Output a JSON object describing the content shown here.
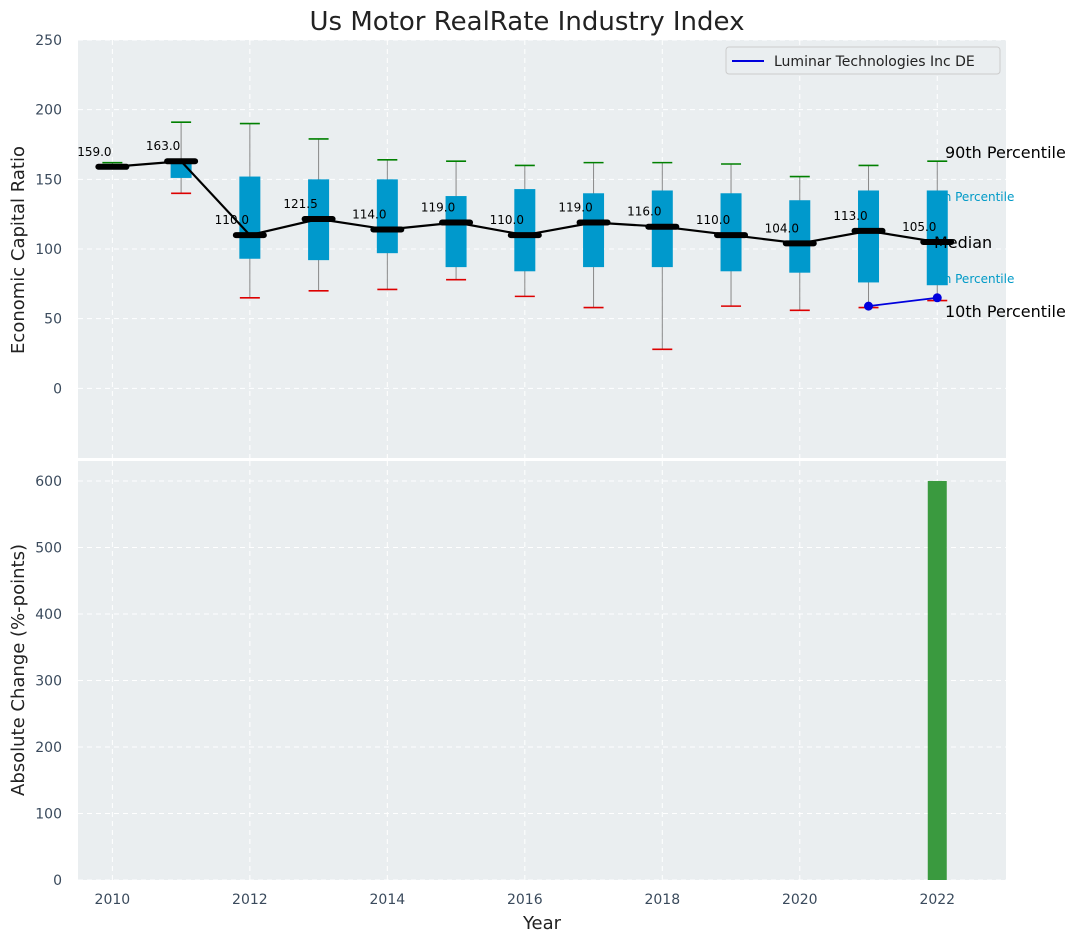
{
  "chart_data": [
    {
      "type": "box",
      "title": "Us Motor RealRate Industry Index",
      "ylabel": "Economic Capital Ratio",
      "xlim": [
        2009.5,
        2023
      ],
      "ylim": [
        -50,
        250
      ],
      "yticks": [
        0,
        50,
        100,
        150,
        200,
        250
      ],
      "grid": true,
      "legend_position": "top-right",
      "colors": {
        "box": "#0099cc",
        "median_line": "#000000",
        "whisker_high": "#008000",
        "whisker_low": "#dd0000",
        "company": "#0000dd",
        "label_small": "#009ac7",
        "background": "#eaeef0"
      },
      "boxes": [
        {
          "year": 2010,
          "p10": 159,
          "q1": 159,
          "median": 159,
          "q3": 159,
          "p90": 162,
          "median_label": "159.0"
        },
        {
          "year": 2011,
          "p10": 140,
          "q1": 151,
          "median": 163,
          "q3": 163,
          "p90": 191,
          "median_label": "163.0"
        },
        {
          "year": 2012,
          "p10": 65,
          "q1": 93,
          "median": 110,
          "q3": 152,
          "p90": 190,
          "median_label": "110.0"
        },
        {
          "year": 2013,
          "p10": 70,
          "q1": 92,
          "median": 121.5,
          "q3": 150,
          "p90": 179,
          "median_label": "121.5"
        },
        {
          "year": 2014,
          "p10": 71,
          "q1": 97,
          "median": 114,
          "q3": 150,
          "p90": 164,
          "median_label": "114.0"
        },
        {
          "year": 2015,
          "p10": 78,
          "q1": 87,
          "median": 119,
          "q3": 138,
          "p90": 163,
          "median_label": "119.0"
        },
        {
          "year": 2016,
          "p10": 66,
          "q1": 84,
          "median": 110,
          "q3": 143,
          "p90": 160,
          "median_label": "110.0"
        },
        {
          "year": 2017,
          "p10": 58,
          "q1": 87,
          "median": 119,
          "q3": 140,
          "p90": 162,
          "median_label": "119.0"
        },
        {
          "year": 2018,
          "p10": 28,
          "q1": 87,
          "median": 116,
          "q3": 142,
          "p90": 162,
          "median_label": "116.0"
        },
        {
          "year": 2019,
          "p10": 59,
          "q1": 84,
          "median": 110,
          "q3": 140,
          "p90": 161,
          "median_label": "110.0"
        },
        {
          "year": 2020,
          "p10": 56,
          "q1": 83,
          "median": 104,
          "q3": 135,
          "p90": 152,
          "median_label": "104.0"
        },
        {
          "year": 2021,
          "p10": 58,
          "q1": 76,
          "median": 113,
          "q3": 142,
          "p90": 160,
          "median_label": "113.0"
        },
        {
          "year": 2022,
          "p10": 63,
          "q1": 74,
          "median": 105,
          "q3": 142,
          "p90": 163,
          "median_label": "105.0"
        }
      ],
      "series": [
        {
          "name": "Luminar Technologies Inc DE",
          "x": [
            2021,
            2022
          ],
          "y": [
            59,
            65
          ]
        }
      ],
      "side_labels": {
        "p90": "90th Percentile",
        "p75": "th Percentile",
        "median": "Median",
        "p25": "th Percentile",
        "p10": "10th Percentile"
      }
    },
    {
      "type": "bar",
      "ylabel": "Absolute Change (%-points)",
      "xlabel": "Year",
      "xlim": [
        2009.5,
        2023
      ],
      "ylim": [
        0,
        630
      ],
      "yticks": [
        0,
        100,
        200,
        300,
        400,
        500,
        600
      ],
      "xticks": [
        2010,
        2012,
        2014,
        2016,
        2018,
        2020,
        2022
      ],
      "grid": true,
      "bar_color": "#3a9a3f",
      "x": [
        2022
      ],
      "values": [
        600
      ]
    }
  ]
}
